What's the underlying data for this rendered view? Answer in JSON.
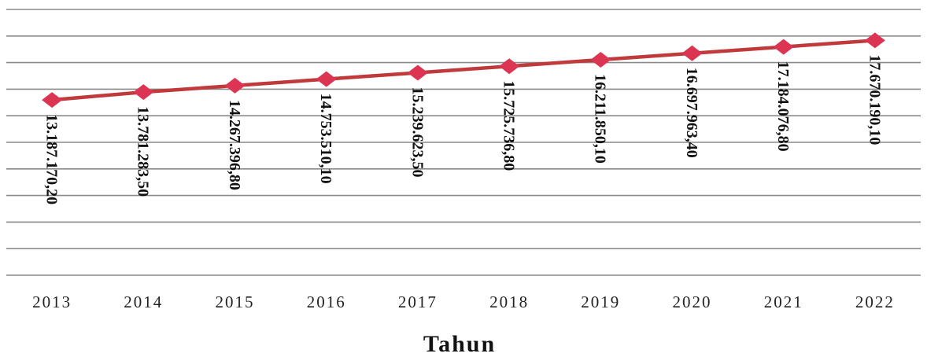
{
  "chart_data": {
    "type": "line",
    "x_label": "Tahun",
    "categories": [
      "2013",
      "2014",
      "2015",
      "2016",
      "2017",
      "2018",
      "2019",
      "2020",
      "2021",
      "2022"
    ],
    "values": [
      13187170.2,
      13781283.5,
      14267396.8,
      14753510.1,
      15239623.5,
      15725736.8,
      16211850.1,
      16697963.4,
      17184076.8,
      17670190.1
    ],
    "value_labels": [
      "13.187.170,20",
      "13.781.283,50",
      "14.267.396,80",
      "14.753.510,10",
      "15.239.623,50",
      "15.725.736,80",
      "16.211.850,10",
      "16.697.963,40",
      "17.184.076,80",
      "17.670.190,10"
    ],
    "color": "#c0393b",
    "marker_color": "#dc3553",
    "ylim": [
      0,
      20000000
    ],
    "yticks": [
      0,
      2000000,
      4000000,
      6000000,
      8000000,
      10000000,
      12000000,
      14000000,
      16000000,
      18000000,
      20000000
    ],
    "grid": true
  }
}
